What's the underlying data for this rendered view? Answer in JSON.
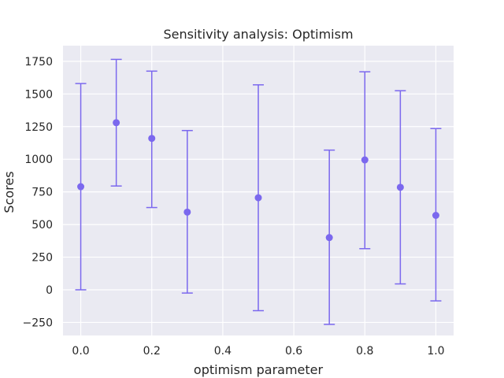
{
  "chart_data": {
    "type": "scatter",
    "title": "Sensitivity analysis: Optimism",
    "xlabel": "optimism parameter",
    "ylabel": "Scores",
    "xlim": [
      -0.05,
      1.05
    ],
    "ylim": [
      -350,
      1870
    ],
    "xticks": [
      0.0,
      0.2,
      0.4,
      0.6,
      0.8,
      1.0
    ],
    "xtick_labels": [
      "0.0",
      "0.2",
      "0.4",
      "0.6",
      "0.8",
      "1.0"
    ],
    "yticks": [
      -250,
      0,
      250,
      500,
      750,
      1000,
      1250,
      1500,
      1750
    ],
    "ytick_labels": [
      "−250",
      "0",
      "250",
      "500",
      "750",
      "1000",
      "1250",
      "1500",
      "1750"
    ],
    "grid": true,
    "background": "#eaeaf2",
    "marker_color": "#7b68ee",
    "error_bars": true,
    "points": [
      {
        "x": 0.0,
        "y": 790,
        "err_low": 0,
        "err_high": 1580
      },
      {
        "x": 0.1,
        "y": 1280,
        "err_low": 795,
        "err_high": 1765
      },
      {
        "x": 0.2,
        "y": 1160,
        "err_low": 630,
        "err_high": 1675
      },
      {
        "x": 0.3,
        "y": 595,
        "err_low": -25,
        "err_high": 1220
      },
      {
        "x": 0.5,
        "y": 705,
        "err_low": -160,
        "err_high": 1570
      },
      {
        "x": 0.7,
        "y": 400,
        "err_low": -265,
        "err_high": 1070
      },
      {
        "x": 0.8,
        "y": 995,
        "err_low": 315,
        "err_high": 1670
      },
      {
        "x": 0.9,
        "y": 785,
        "err_low": 45,
        "err_high": 1525
      },
      {
        "x": 1.0,
        "y": 570,
        "err_low": -85,
        "err_high": 1235
      }
    ]
  }
}
